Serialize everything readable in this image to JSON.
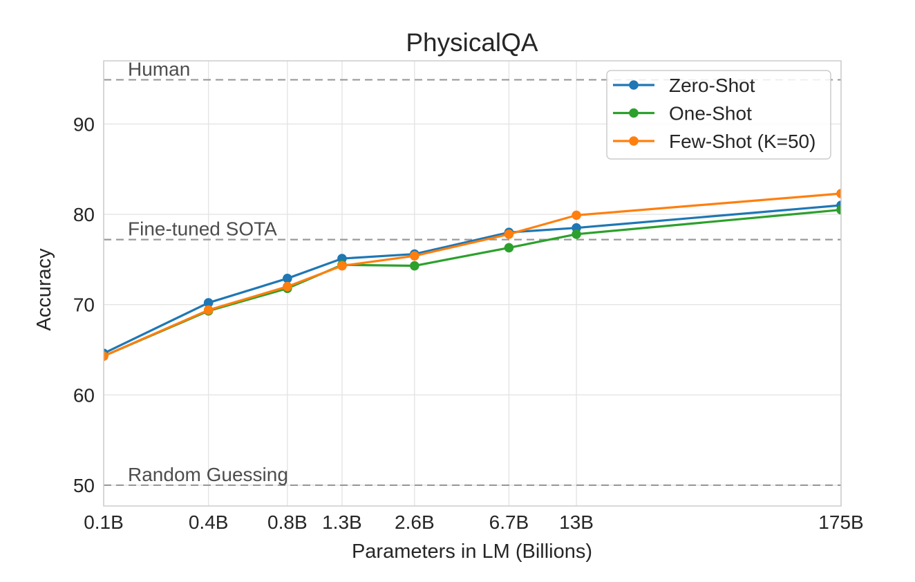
{
  "chart_data": {
    "type": "line",
    "title": "PhysicalQA",
    "xlabel": "Parameters in LM (Billions)",
    "ylabel": "Accuracy",
    "x_scale": "log",
    "x": [
      0.125,
      0.35,
      0.76,
      1.3,
      2.65,
      6.7,
      13,
      175
    ],
    "x_tick_labels": [
      "0.1B",
      "0.4B",
      "0.8B",
      "1.3B",
      "2.6B",
      "6.7B",
      "13B",
      "175B"
    ],
    "y_ticks": [
      50,
      60,
      70,
      80,
      90
    ],
    "y_tick_labels": [
      "50",
      "60",
      "70",
      "80",
      "90"
    ],
    "xlim": [
      0.125,
      175
    ],
    "ylim": [
      47.7,
      97.0
    ],
    "grid": true,
    "legend_position": "upper right",
    "series": [
      {
        "name": "Zero-Shot",
        "color": "#1f77b4",
        "values": [
          64.6,
          70.2,
          72.9,
          75.1,
          75.6,
          78.0,
          78.5,
          81.0
        ]
      },
      {
        "name": "One-Shot",
        "color": "#2ca02c",
        "values": [
          64.3,
          69.3,
          71.8,
          74.4,
          74.3,
          76.3,
          77.8,
          80.5
        ]
      },
      {
        "name": "Few-Shot (K=50)",
        "color": "#ff7f0e",
        "values": [
          64.3,
          69.4,
          72.0,
          74.3,
          75.4,
          77.8,
          79.9,
          82.3
        ]
      }
    ],
    "reference_lines": [
      {
        "label": "Human",
        "value": 94.9
      },
      {
        "label": "Fine-tuned SOTA",
        "value": 77.2
      },
      {
        "label": "Random Guessing",
        "value": 50.0
      }
    ],
    "reference_line_color": "#999999",
    "reference_label_color": "#4d4d4d",
    "grid_color": "#e4e4e4",
    "spine_color": "#cccccc",
    "text_color": "#262626"
  }
}
